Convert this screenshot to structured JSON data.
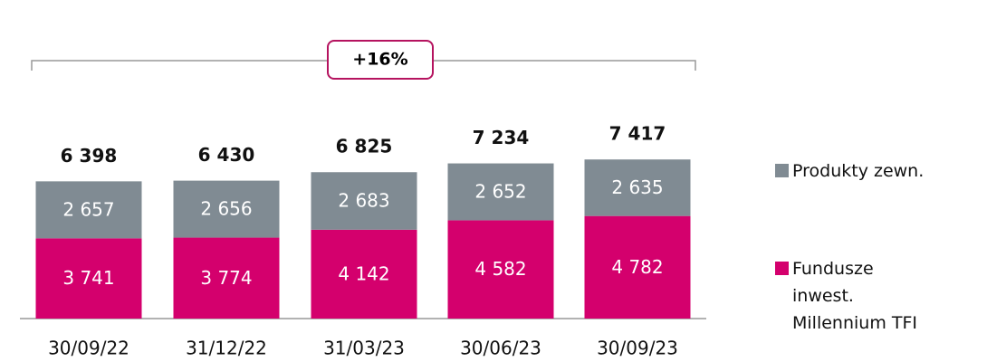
{
  "chart_data": {
    "type": "stacked_bar",
    "categories": [
      "30/09/22",
      "31/12/22",
      "31/03/23",
      "30/06/23",
      "30/09/23"
    ],
    "series": [
      {
        "name": "Fundusze inwest. Millennium TFI",
        "color": "#d4006d",
        "values": [
          3741,
          3774,
          4142,
          4582,
          4782
        ],
        "value_labels": [
          "3 741",
          "3 774",
          "4 142",
          "4 582",
          "4 782"
        ]
      },
      {
        "name": "Produkty zewn.",
        "color": "#808b93",
        "values": [
          2657,
          2656,
          2683,
          2652,
          2635
        ],
        "value_labels": [
          "2 657",
          "2 656",
          "2 683",
          "2 652",
          "2 635"
        ]
      }
    ],
    "totals": {
      "values": [
        6398,
        6430,
        6825,
        7234,
        7417
      ],
      "value_labels": [
        "6 398",
        "6 430",
        "6 825",
        "7 234",
        "7 417"
      ]
    },
    "annotation": "+16%",
    "legend": "right"
  }
}
